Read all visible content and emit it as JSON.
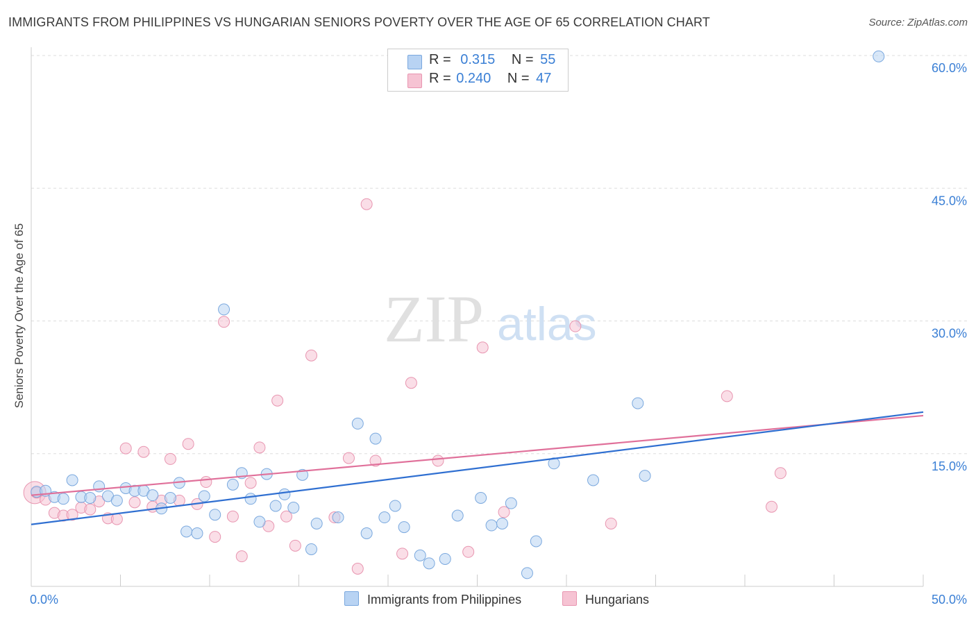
{
  "title": "IMMIGRANTS FROM PHILIPPINES VS HUNGARIAN SENIORS POVERTY OVER THE AGE OF 65 CORRELATION CHART",
  "source": "Source: ZipAtlas.com",
  "watermark": {
    "zip": "ZIP",
    "atlas": "atlas"
  },
  "legend": {
    "r_label": "R =",
    "n_label": "N =",
    "rows": [
      {
        "r": "0.315",
        "n": "55"
      },
      {
        "r": "0.240",
        "n": "47"
      }
    ]
  },
  "colors": {
    "blue_fill": "#b8d3f3",
    "blue_stroke": "#7aa8de",
    "blue_line": "#2f6fd1",
    "pink_fill": "#f6c3d3",
    "pink_stroke": "#e895b0",
    "pink_line": "#e0709a",
    "tick_label": "#3a7fd5"
  },
  "chart_data": {
    "type": "scatter",
    "title": "IMMIGRANTS FROM PHILIPPINES VS HUNGARIAN SENIORS POVERTY OVER THE AGE OF 65 CORRELATION CHART",
    "xlabel": "",
    "ylabel": "Seniors Poverty Over the Age of 65",
    "xlim": [
      0,
      50
    ],
    "ylim": [
      0,
      60
    ],
    "x_tick_labels": [
      "0.0%",
      "50.0%"
    ],
    "y_ticks": [
      15,
      30,
      45,
      60
    ],
    "y_tick_labels": [
      "15.0%",
      "30.0%",
      "45.0%",
      "60.0%"
    ],
    "grid": true,
    "series": [
      {
        "name": "Immigrants from Philippines",
        "r": 0.315,
        "n": 55,
        "trend": [
          [
            0,
            7.0
          ],
          [
            50,
            19.7
          ]
        ],
        "points": [
          [
            0.3,
            10.7
          ],
          [
            0.8,
            10.8
          ],
          [
            1.3,
            10.1
          ],
          [
            1.8,
            9.9
          ],
          [
            2.3,
            12.0
          ],
          [
            2.8,
            10.1
          ],
          [
            3.3,
            10.0
          ],
          [
            3.8,
            11.3
          ],
          [
            4.3,
            10.2
          ],
          [
            4.8,
            9.7
          ],
          [
            5.3,
            11.1
          ],
          [
            5.8,
            10.8
          ],
          [
            6.3,
            10.8
          ],
          [
            6.8,
            10.3
          ],
          [
            7.3,
            8.8
          ],
          [
            7.8,
            10.0
          ],
          [
            8.3,
            11.7
          ],
          [
            8.7,
            6.2
          ],
          [
            9.3,
            6.0
          ],
          [
            9.7,
            10.2
          ],
          [
            10.3,
            8.1
          ],
          [
            10.8,
            31.3
          ],
          [
            11.3,
            11.5
          ],
          [
            11.8,
            12.8
          ],
          [
            12.3,
            9.9
          ],
          [
            12.8,
            7.3
          ],
          [
            13.2,
            12.7
          ],
          [
            13.7,
            9.1
          ],
          [
            14.2,
            10.4
          ],
          [
            14.7,
            8.9
          ],
          [
            15.2,
            12.6
          ],
          [
            15.7,
            4.2
          ],
          [
            16.0,
            7.1
          ],
          [
            17.2,
            7.8
          ],
          [
            18.3,
            18.4
          ],
          [
            18.8,
            6.0
          ],
          [
            19.3,
            16.7
          ],
          [
            19.8,
            7.8
          ],
          [
            20.4,
            9.1
          ],
          [
            20.9,
            6.7
          ],
          [
            21.8,
            3.5
          ],
          [
            22.3,
            2.6
          ],
          [
            23.2,
            3.1
          ],
          [
            23.9,
            8.0
          ],
          [
            25.2,
            10.0
          ],
          [
            25.8,
            6.9
          ],
          [
            26.4,
            7.1
          ],
          [
            26.9,
            9.4
          ],
          [
            27.8,
            1.5
          ],
          [
            28.3,
            5.1
          ],
          [
            29.3,
            13.9
          ],
          [
            31.5,
            12.0
          ],
          [
            34.0,
            20.7
          ],
          [
            34.4,
            12.5
          ],
          [
            47.5,
            59.9
          ]
        ]
      },
      {
        "name": "Hungarians",
        "r": 0.24,
        "n": 47,
        "trend": [
          [
            0,
            10.3
          ],
          [
            50,
            19.3
          ]
        ],
        "points": [
          [
            0.3,
            10.6
          ],
          [
            0.8,
            9.8
          ],
          [
            1.3,
            8.3
          ],
          [
            1.8,
            8.0
          ],
          [
            2.3,
            8.1
          ],
          [
            2.8,
            8.9
          ],
          [
            3.3,
            8.7
          ],
          [
            3.8,
            9.6
          ],
          [
            4.3,
            7.7
          ],
          [
            4.8,
            7.6
          ],
          [
            5.3,
            15.6
          ],
          [
            5.8,
            9.5
          ],
          [
            6.3,
            15.2
          ],
          [
            6.8,
            9.0
          ],
          [
            7.3,
            9.7
          ],
          [
            7.8,
            14.4
          ],
          [
            8.3,
            9.7
          ],
          [
            8.8,
            16.1
          ],
          [
            9.3,
            9.3
          ],
          [
            9.8,
            11.8
          ],
          [
            10.3,
            5.6
          ],
          [
            10.8,
            29.9
          ],
          [
            11.3,
            7.9
          ],
          [
            11.8,
            3.4
          ],
          [
            12.3,
            11.7
          ],
          [
            12.8,
            15.7
          ],
          [
            13.3,
            6.8
          ],
          [
            13.8,
            21.0
          ],
          [
            14.3,
            7.9
          ],
          [
            14.8,
            4.6
          ],
          [
            15.7,
            26.1
          ],
          [
            17.0,
            7.8
          ],
          [
            17.8,
            14.5
          ],
          [
            18.3,
            2.0
          ],
          [
            18.8,
            43.2
          ],
          [
            19.3,
            14.2
          ],
          [
            20.8,
            3.7
          ],
          [
            21.3,
            23.0
          ],
          [
            22.8,
            14.2
          ],
          [
            24.5,
            3.9
          ],
          [
            25.3,
            27.0
          ],
          [
            26.5,
            8.4
          ],
          [
            30.5,
            29.4
          ],
          [
            32.5,
            7.1
          ],
          [
            39.0,
            21.5
          ],
          [
            41.5,
            9.0
          ],
          [
            42.0,
            12.8
          ]
        ]
      }
    ]
  },
  "bottom_legend": {
    "items": [
      "Immigrants from Philippines",
      "Hungarians"
    ]
  }
}
